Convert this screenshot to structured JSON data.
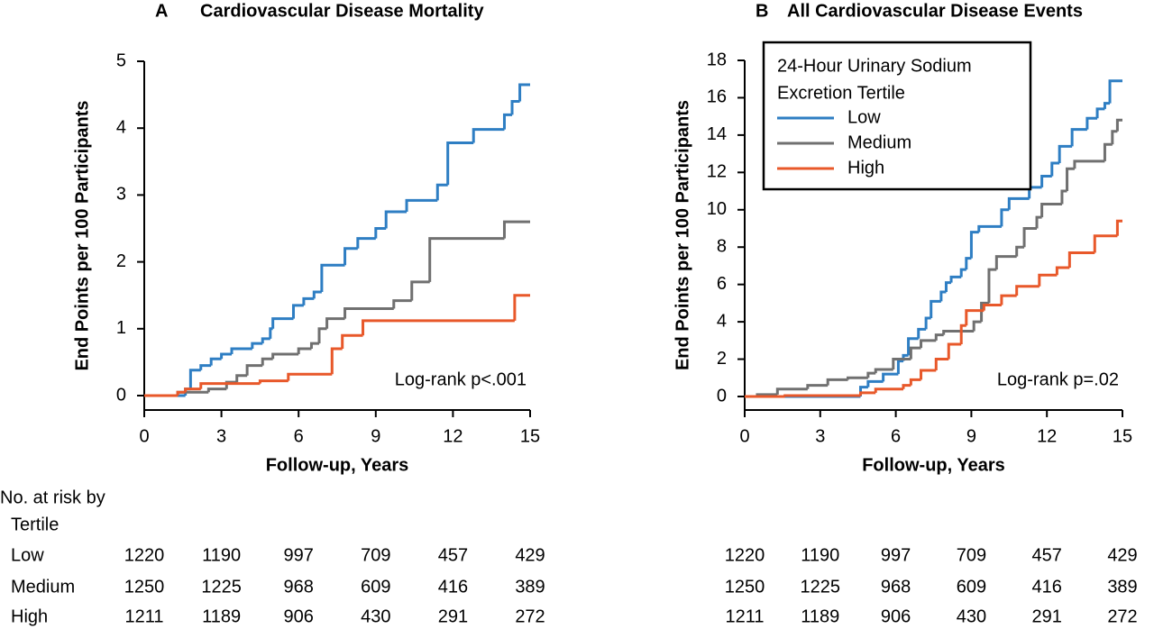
{
  "chart_data": [
    {
      "type": "line",
      "step": true,
      "panel": "A",
      "title": "Cardiovascular Disease Mortality",
      "xlabel": "Follow-up, Years",
      "ylabel": "End Points per 100 Participants",
      "annotation": "Log-rank p<.001",
      "xlim": [
        0,
        15
      ],
      "xticks": [
        0,
        3,
        6,
        9,
        12,
        15
      ],
      "ylim": [
        0,
        5
      ],
      "yticks": [
        0,
        1,
        2,
        3,
        4,
        5
      ],
      "series": [
        {
          "color": "#2e7ec3",
          "x": [
            0,
            1.6,
            1.8,
            2.2,
            2.6,
            3,
            3.4,
            4.2,
            4.6,
            4.9,
            5,
            5.8,
            6.2,
            6.6,
            6.9,
            7.8,
            8.3,
            9,
            9.4,
            10.2,
            11.4,
            11.8,
            12.8,
            14,
            14.3,
            14.6,
            15
          ],
          "values": [
            0,
            0.1,
            0.38,
            0.45,
            0.55,
            0.62,
            0.7,
            0.78,
            0.85,
            1.0,
            1.15,
            1.35,
            1.45,
            1.55,
            1.95,
            2.2,
            2.35,
            2.5,
            2.75,
            2.92,
            3.15,
            3.78,
            3.98,
            4.2,
            4.4,
            4.65,
            4.65
          ]
        },
        {
          "color": "#707070",
          "x": [
            0,
            1.3,
            2.5,
            3.2,
            3.6,
            4,
            4.6,
            5,
            6,
            6.5,
            6.8,
            7.1,
            7.8,
            9.7,
            10.4,
            11.1,
            14,
            15
          ],
          "values": [
            0,
            0.05,
            0.1,
            0.2,
            0.3,
            0.45,
            0.55,
            0.62,
            0.7,
            0.78,
            1.0,
            1.15,
            1.3,
            1.42,
            1.7,
            2.35,
            2.6,
            2.6
          ]
        },
        {
          "color": "#e8582a",
          "x": [
            0,
            1.3,
            1.6,
            2.2,
            4.5,
            5.6,
            7.3,
            7.7,
            8.5,
            14.4,
            15
          ],
          "values": [
            0,
            0.05,
            0.1,
            0.18,
            0.22,
            0.32,
            0.7,
            0.9,
            1.12,
            1.5,
            1.5
          ]
        }
      ]
    },
    {
      "type": "line",
      "step": true,
      "panel": "B",
      "title": "All Cardiovascular Disease Events",
      "xlabel": "Follow-up, Years",
      "ylabel": "End Points per 100 Participants",
      "annotation": "Log-rank p=.02",
      "legend": "upper left",
      "legend_title": [
        "24-Hour Urinary Sodium",
        "Excretion Tertile"
      ],
      "xlim": [
        0,
        15
      ],
      "xticks": [
        0,
        3,
        6,
        9,
        12,
        15
      ],
      "ylim": [
        0,
        18
      ],
      "yticks": [
        0,
        2,
        4,
        6,
        8,
        10,
        12,
        14,
        16,
        18
      ],
      "series": [
        {
          "name": "Low",
          "color": "#2e7ec3",
          "x": [
            0,
            4.6,
            4.9,
            5.5,
            6.1,
            6.3,
            6.5,
            6.9,
            7.2,
            7.4,
            7.8,
            8,
            8.2,
            8.6,
            8.8,
            9,
            9.3,
            10.2,
            10.5,
            11.3,
            11.8,
            12.2,
            12.5,
            13,
            13.6,
            14,
            14.3,
            14.5,
            15
          ],
          "values": [
            0,
            0.5,
            0.8,
            1.2,
            1.9,
            2.2,
            3.1,
            3.6,
            4.2,
            5.1,
            5.6,
            6.1,
            6.4,
            6.8,
            7.4,
            8.8,
            9.1,
            10,
            10.6,
            11.2,
            11.8,
            12.5,
            13.4,
            14.3,
            14.9,
            15.4,
            15.7,
            16.9,
            16.9
          ]
        },
        {
          "name": "Medium",
          "color": "#707070",
          "x": [
            0,
            0.5,
            1.3,
            2.5,
            3.3,
            4.1,
            4.9,
            5.2,
            5.9,
            6.6,
            7,
            7.6,
            7.9,
            9.1,
            9.4,
            9.7,
            10,
            10.8,
            11.1,
            11.6,
            11.8,
            12.6,
            12.8,
            13.1,
            14.3,
            14.6,
            14.8,
            15
          ],
          "values": [
            0,
            0.1,
            0.4,
            0.6,
            0.9,
            1.0,
            1.25,
            1.45,
            2.0,
            2.6,
            3.0,
            3.3,
            3.5,
            4.0,
            5.0,
            6.8,
            7.5,
            8.0,
            9.0,
            9.6,
            10.3,
            11.0,
            12.2,
            12.6,
            13.5,
            14.2,
            14.8,
            14.8
          ]
        },
        {
          "name": "High",
          "color": "#e8582a",
          "x": [
            0,
            1.6,
            4.6,
            5.2,
            6.3,
            6.6,
            7,
            7.6,
            8.1,
            8.6,
            8.8,
            9.5,
            10.2,
            10.8,
            11.7,
            12.4,
            12.9,
            13.9,
            14.8,
            15
          ],
          "values": [
            0,
            0.05,
            0.2,
            0.4,
            0.6,
            0.9,
            1.4,
            2.0,
            2.8,
            3.8,
            4.6,
            4.9,
            5.4,
            5.9,
            6.5,
            6.9,
            7.7,
            8.6,
            9.4,
            9.4
          ]
        }
      ]
    }
  ],
  "risk_table": {
    "title": "No. at risk by",
    "subtitle": "Tertile",
    "rows": [
      {
        "label": "Low",
        "values": [
          1220,
          1190,
          997,
          709,
          457,
          429
        ]
      },
      {
        "label": "Medium",
        "values": [
          1250,
          1225,
          968,
          609,
          416,
          389
        ]
      },
      {
        "label": "High",
        "values": [
          1211,
          1189,
          906,
          430,
          291,
          272
        ]
      }
    ]
  }
}
